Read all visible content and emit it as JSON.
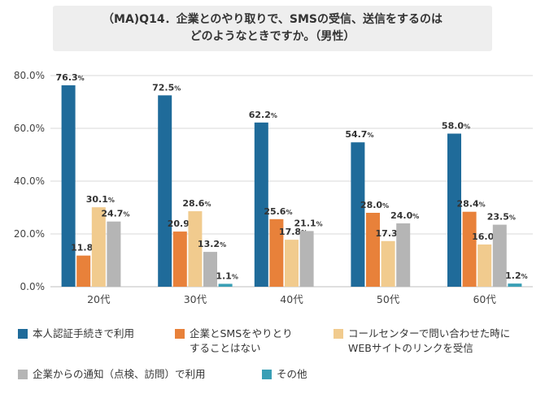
{
  "chart_data": {
    "type": "bar",
    "title_lines": [
      "（MA)Q14．企業とのやり取りで、SMSの受信、送信をするのは",
      "どのようなときですか。（男性）"
    ],
    "categories": [
      "20代",
      "30代",
      "40代",
      "50代",
      "60代"
    ],
    "ylim": [
      0,
      80
    ],
    "yticks": [
      "0.0%",
      "20.0%",
      "40.0%",
      "60.0%",
      "80.0%"
    ],
    "ytick_values": [
      0,
      20,
      40,
      60,
      80
    ],
    "grid": true,
    "legend_position": "bottom",
    "value_suffix": "%",
    "series": [
      {
        "name": "本人認証手続きで利用",
        "color": "#1f6b9a",
        "values": [
          76.3,
          72.5,
          62.2,
          54.7,
          58.0
        ],
        "labels": [
          "76.3",
          "72.5",
          "62.2",
          "54.7",
          "58.0"
        ]
      },
      {
        "name": "企業とSMSをやりとり\nすることはない",
        "color": "#e8813a",
        "values": [
          11.8,
          20.9,
          25.6,
          28.0,
          28.4
        ],
        "labels": [
          "11.8",
          "20.9",
          "25.6",
          "28.0",
          "28.4"
        ]
      },
      {
        "name": "コールセンターで問い合わせた時に\nWEBサイトのリンクを受信",
        "color": "#f1cb8e",
        "values": [
          30.1,
          28.6,
          17.8,
          17.3,
          16.0
        ],
        "labels": [
          "30.1",
          "28.6",
          "17.8",
          "17.3",
          "16.0"
        ]
      },
      {
        "name": "企業からの通知（点検、訪問）で利用",
        "color": "#b5b5b5",
        "values": [
          24.7,
          13.2,
          21.1,
          24.0,
          23.5
        ],
        "labels": [
          "24.7",
          "13.2",
          "21.1",
          "24.0",
          "23.5"
        ]
      },
      {
        "name": "その他",
        "color": "#3a9fb5",
        "values": [
          0.0,
          1.1,
          0.0,
          0.0,
          1.2
        ],
        "labels": [
          "",
          "1.1",
          "",
          "",
          "1.2"
        ]
      }
    ]
  }
}
